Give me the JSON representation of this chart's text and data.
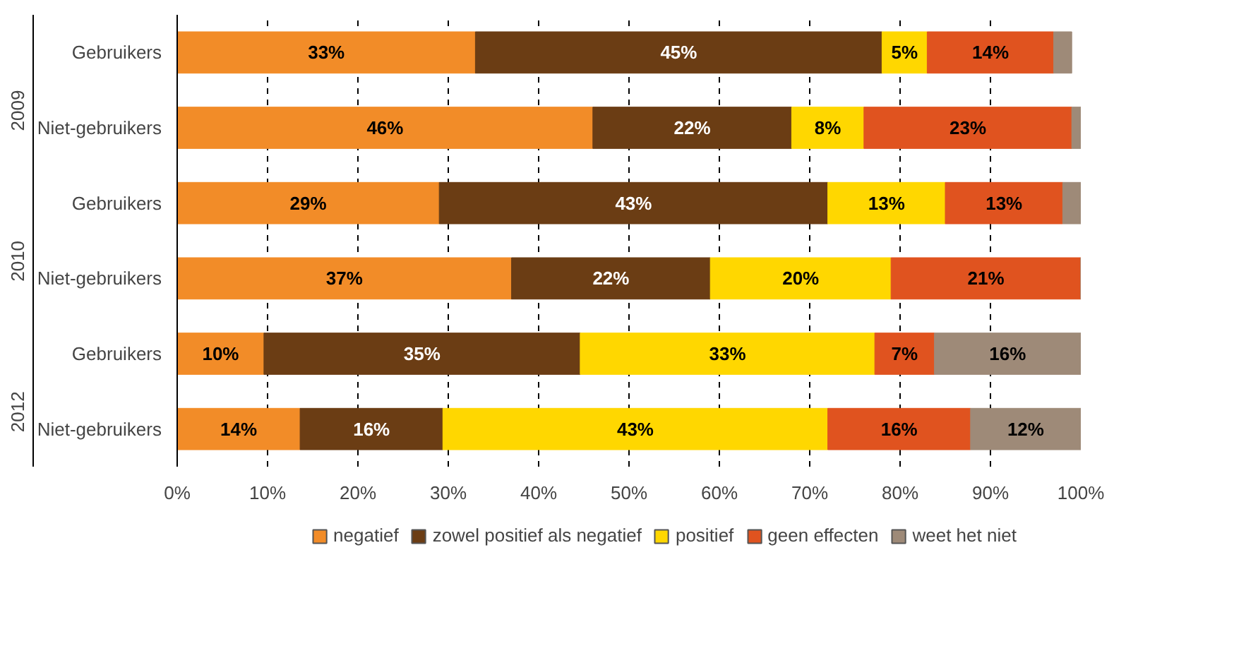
{
  "chart_data": {
    "type": "bar",
    "orientation": "horizontal",
    "stacked": true,
    "categories": [
      "Gebruikers",
      "Niet-gebruikers",
      "Gebruikers",
      "Niet-gebruikers",
      "Gebruikers",
      "Niet-gebruikers"
    ],
    "annotations": [
      "2009",
      "2010",
      "2012"
    ],
    "series": [
      {
        "name": "negatief",
        "color": "#f28c28",
        "values": [
          33,
          46,
          29,
          37,
          9.6,
          13.6
        ],
        "value_labels": [
          "33%",
          "46%",
          "29%",
          "37%",
          "10%",
          "14%"
        ]
      },
      {
        "name": "zowel positief als negatief",
        "color": "#6b3d14",
        "values": [
          45,
          22,
          43,
          22,
          35,
          15.8
        ],
        "value_labels": [
          "45%",
          "22%",
          "43%",
          "22%",
          "35%",
          "16%"
        ]
      },
      {
        "name": "positief",
        "color": "#ffd700",
        "values": [
          5,
          8,
          13,
          20,
          32.6,
          42.6
        ],
        "value_labels": [
          "5%",
          "8%",
          "13%",
          "20%",
          "33%",
          "43%"
        ]
      },
      {
        "name": "geen effecten",
        "color": "#e0531f",
        "values": [
          14,
          23,
          13,
          21,
          6.6,
          15.8
        ],
        "value_labels": [
          "14%",
          "23%",
          "13%",
          "21%",
          "7%",
          "16%"
        ]
      },
      {
        "name": "weet het niet",
        "color": "#9e8a78",
        "values": [
          2,
          1,
          2,
          0,
          16.2,
          12.2
        ],
        "value_labels": [
          null,
          null,
          null,
          null,
          "16%",
          "12%"
        ]
      }
    ],
    "xlim": [
      0,
      100
    ],
    "xticks": [
      {
        "value": 0,
        "label": "0%"
      },
      {
        "value": 10,
        "label": "10%"
      },
      {
        "value": 20,
        "label": "20%"
      },
      {
        "value": 30,
        "label": "30%"
      },
      {
        "value": 40,
        "label": "40%"
      },
      {
        "value": 50,
        "label": "50%"
      },
      {
        "value": 60,
        "label": "60%"
      },
      {
        "value": 70,
        "label": "70%"
      },
      {
        "value": 80,
        "label": "80%"
      },
      {
        "value": 90,
        "label": "90%"
      },
      {
        "value": 100,
        "label": "100%"
      }
    ],
    "grid": "x",
    "legend": "bottom"
  }
}
